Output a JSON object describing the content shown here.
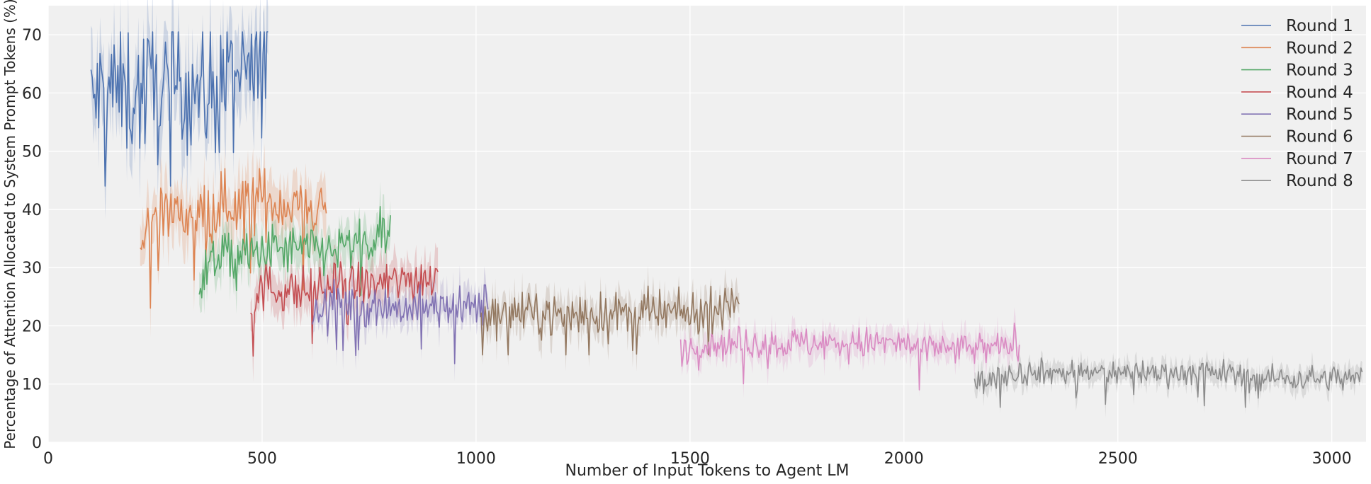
{
  "chart_data": {
    "type": "line",
    "xlabel": "Number of Input Tokens to Agent LM",
    "ylabel": "Percentage of Attention Allocated to System Prompt Tokens (%)",
    "xlim": [
      0,
      3080
    ],
    "ylim": [
      0,
      75
    ],
    "xticks": [
      0,
      500,
      1000,
      1500,
      2000,
      2500,
      3000
    ],
    "yticks": [
      0,
      10,
      20,
      30,
      40,
      50,
      60,
      70
    ],
    "grid": true,
    "legend_position": "top-right",
    "series": [
      {
        "name": "Round 1",
        "color": "#4c72b0",
        "x_start": 100,
        "x_end": 515,
        "mean": [
          58,
          61,
          60,
          60,
          61,
          60,
          62,
          60,
          61,
          62,
          63,
          66
        ],
        "noise": 6,
        "min": 44,
        "max": 70.5,
        "band": 6
      },
      {
        "name": "Round 2",
        "color": "#dd8452",
        "x_start": 215,
        "x_end": 650,
        "mean": [
          33,
          41,
          39,
          39,
          40,
          41,
          41,
          42,
          41,
          41,
          41,
          40
        ],
        "noise": 2.8,
        "min": 19,
        "max": 47,
        "band": 4
      },
      {
        "name": "Round 3",
        "color": "#55a868",
        "x_start": 353,
        "x_end": 800,
        "mean": [
          28,
          32,
          32,
          32,
          33,
          33,
          33,
          33,
          33,
          34,
          34,
          36
        ],
        "noise": 2.2,
        "min": 19.5,
        "max": 40.5,
        "band": 3
      },
      {
        "name": "Round 4",
        "color": "#c44e52",
        "x_start": 473,
        "x_end": 912,
        "mean": [
          24,
          27,
          26,
          26,
          26,
          27,
          27,
          27,
          27,
          28,
          28,
          29
        ],
        "noise": 2,
        "min": 13.5,
        "max": 32,
        "band": 3
      },
      {
        "name": "Round 5",
        "color": "#8172b3",
        "x_start": 617,
        "x_end": 1030,
        "mean": [
          22,
          24,
          24,
          23,
          24,
          23,
          23,
          23,
          23,
          23,
          23,
          24
        ],
        "noise": 1.8,
        "min": 13.5,
        "max": 28,
        "band": 2.5
      },
      {
        "name": "Round 6",
        "color": "#937860",
        "x_start": 1012,
        "x_end": 1615,
        "mean": [
          22,
          22,
          22,
          22,
          22,
          22,
          22,
          22,
          22,
          22,
          23,
          25
        ],
        "noise": 1.8,
        "min": 15,
        "max": 28,
        "band": 2.5
      },
      {
        "name": "Round 7",
        "color": "#da8bc3",
        "x_start": 1478,
        "x_end": 2272,
        "mean": [
          16,
          17,
          17,
          17,
          17,
          17,
          17,
          17,
          16,
          16,
          16,
          17
        ],
        "noise": 1.4,
        "min": 9,
        "max": 21,
        "band": 2
      },
      {
        "name": "Round 8",
        "color": "#8c8c8c",
        "x_start": 2165,
        "x_end": 3072,
        "mean": [
          10,
          12,
          12,
          12,
          12,
          12,
          12,
          12,
          11,
          11,
          11,
          11
        ],
        "noise": 1.1,
        "min": 6,
        "max": 15.5,
        "band": 1.6
      }
    ]
  }
}
